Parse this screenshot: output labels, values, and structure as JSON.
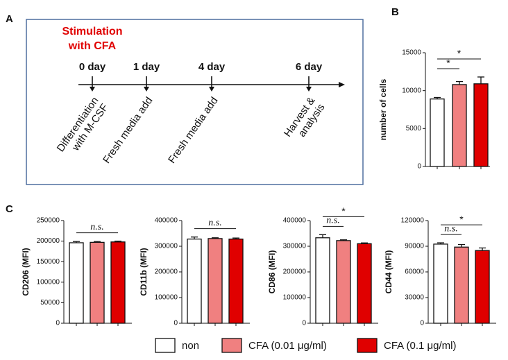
{
  "panels": [
    "A",
    "B",
    "C"
  ],
  "timeline": {
    "title": [
      "Stimulation",
      "with CFA"
    ],
    "days": [
      {
        "label": "0 day",
        "steps": [
          "Differentiation",
          "with M-CSF"
        ]
      },
      {
        "label": "1 day",
        "steps": [
          "Fresh media add"
        ]
      },
      {
        "label": "4 day",
        "steps": [
          "Fresh media add"
        ]
      },
      {
        "label": "6 day",
        "steps": [
          "Harvest &",
          "analysis"
        ]
      }
    ]
  },
  "legend": {
    "entries": [
      {
        "name": "non",
        "color": "#ffffff"
      },
      {
        "name": "CFA (0.01 μg/ml)",
        "color": "#f08080"
      },
      {
        "name": "CFA (0.1 μg/ml)",
        "color": "#e00000"
      }
    ]
  },
  "chart_data": [
    {
      "type": "bar",
      "y_label": "number of cells",
      "categories": [
        null,
        null,
        null
      ],
      "values": [
        8900,
        10800,
        10900
      ],
      "errors": [
        200,
        400,
        900
      ],
      "ylim": [
        0,
        15000
      ],
      "yticks": [
        0,
        5000,
        10000,
        15000
      ],
      "annotations": [
        {
          "text": "*",
          "from": 0,
          "to": 1
        },
        {
          "text": "*",
          "from": 0,
          "to": 2
        }
      ]
    },
    {
      "type": "bar",
      "y_label": "CD206 (MFI)",
      "categories": [
        null,
        null,
        null
      ],
      "values": [
        196000,
        197000,
        198000
      ],
      "errors": [
        3000,
        2000,
        2000
      ],
      "ylim": [
        0,
        250000
      ],
      "yticks": [
        0,
        50000,
        100000,
        150000,
        200000,
        250000
      ],
      "annotations": [
        {
          "text": "n.s.",
          "from": 0,
          "to": 2
        }
      ]
    },
    {
      "type": "bar",
      "y_label": "CD11b (MFI)",
      "categories": [
        null,
        null,
        null
      ],
      "values": [
        328000,
        330000,
        328000
      ],
      "errors": [
        8000,
        3000,
        4000
      ],
      "ylim": [
        0,
        400000
      ],
      "yticks": [
        0,
        100000,
        200000,
        300000,
        400000
      ],
      "annotations": [
        {
          "text": "n.s.",
          "from": 0,
          "to": 2
        }
      ]
    },
    {
      "type": "bar",
      "y_label": "CD86 (MFI)",
      "categories": [
        null,
        null,
        null
      ],
      "values": [
        333000,
        322000,
        310000
      ],
      "errors": [
        12000,
        3000,
        3000
      ],
      "ylim": [
        0,
        400000
      ],
      "yticks": [
        0,
        100000,
        200000,
        300000,
        400000
      ],
      "annotations": [
        {
          "text": "n.s.",
          "from": 0,
          "to": 1
        },
        {
          "text": "*",
          "from": 0,
          "to": 2
        }
      ]
    },
    {
      "type": "bar",
      "y_label": "CD44 (MFI)",
      "categories": [
        null,
        null,
        null
      ],
      "values": [
        92500,
        89000,
        85000
      ],
      "errors": [
        1500,
        3000,
        3000
      ],
      "ylim": [
        0,
        120000
      ],
      "yticks": [
        0,
        30000,
        60000,
        90000,
        120000
      ],
      "annotations": [
        {
          "text": "n.s.",
          "from": 0,
          "to": 1
        },
        {
          "text": "*",
          "from": 0,
          "to": 2
        }
      ]
    }
  ]
}
